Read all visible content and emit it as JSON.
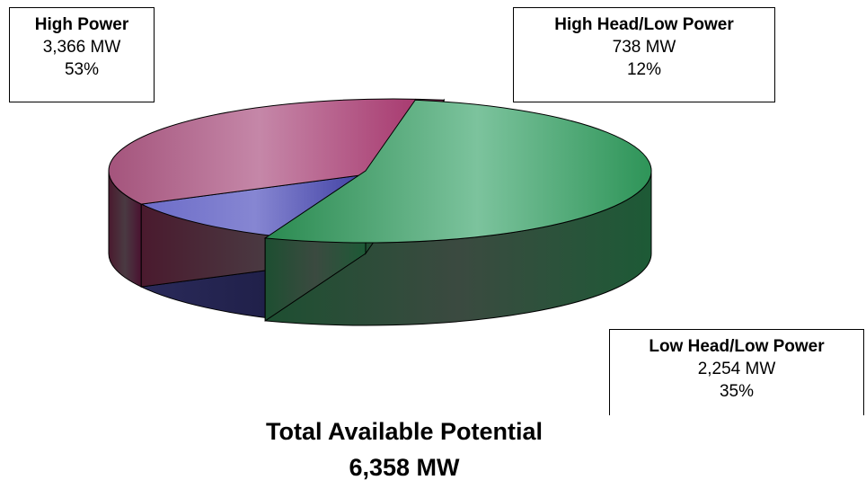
{
  "chart_data": {
    "type": "pie",
    "title": "Total Available Potential",
    "total": "6,358 MW",
    "slices": [
      {
        "name": "High Power",
        "value": 3366,
        "value_label": "3,366 MW",
        "percent_label": "53%",
        "color": "#3fa06a"
      },
      {
        "name": "High Head/Low Power",
        "value": 738,
        "value_label": "738 MW",
        "percent_label": "12%",
        "color": "#5a5ab8"
      },
      {
        "name": "Low Head/Low Power",
        "value": 2254,
        "value_label": "2,254 MW",
        "percent_label": "35%",
        "color": "#b8527e"
      }
    ],
    "exploded": "High Power",
    "style": "3d",
    "legend": "none"
  }
}
